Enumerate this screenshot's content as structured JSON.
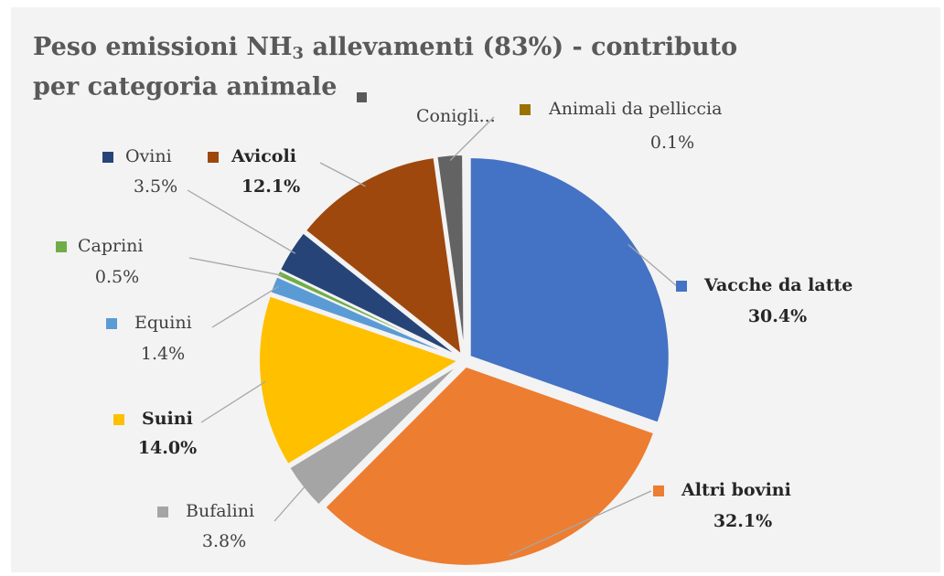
{
  "chart_data": {
    "type": "pie",
    "title": [
      "Peso emissioni NH",
      "3",
      " allevamenti (83%) - contributo",
      "per categoria animale"
    ],
    "categories": [
      "Vacche da latte",
      "Altri bovini",
      "Bufalini",
      "Suini",
      "Equini",
      "Caprini",
      "Ovini",
      "Avicoli",
      "Conigli...",
      "Animali da pelliccia"
    ],
    "values": [
      30.4,
      32.1,
      3.8,
      14.0,
      1.4,
      0.5,
      3.5,
      12.1,
      2.1,
      0.1
    ],
    "value_labels": [
      "30.4%",
      "32.1%",
      "3.8%",
      "14.0%",
      "1.4%",
      "0.5%",
      "3.5%",
      "12.1%",
      null,
      "0.1%"
    ],
    "colors": [
      "#4472c4",
      "#ed7d31",
      "#a5a5a5",
      "#ffc000",
      "#5b9bd5",
      "#70ad47",
      "#264478",
      "#9e480e",
      "#636363",
      "#997300"
    ],
    "bold": [
      true,
      true,
      false,
      true,
      false,
      false,
      false,
      true,
      false,
      false
    ]
  }
}
